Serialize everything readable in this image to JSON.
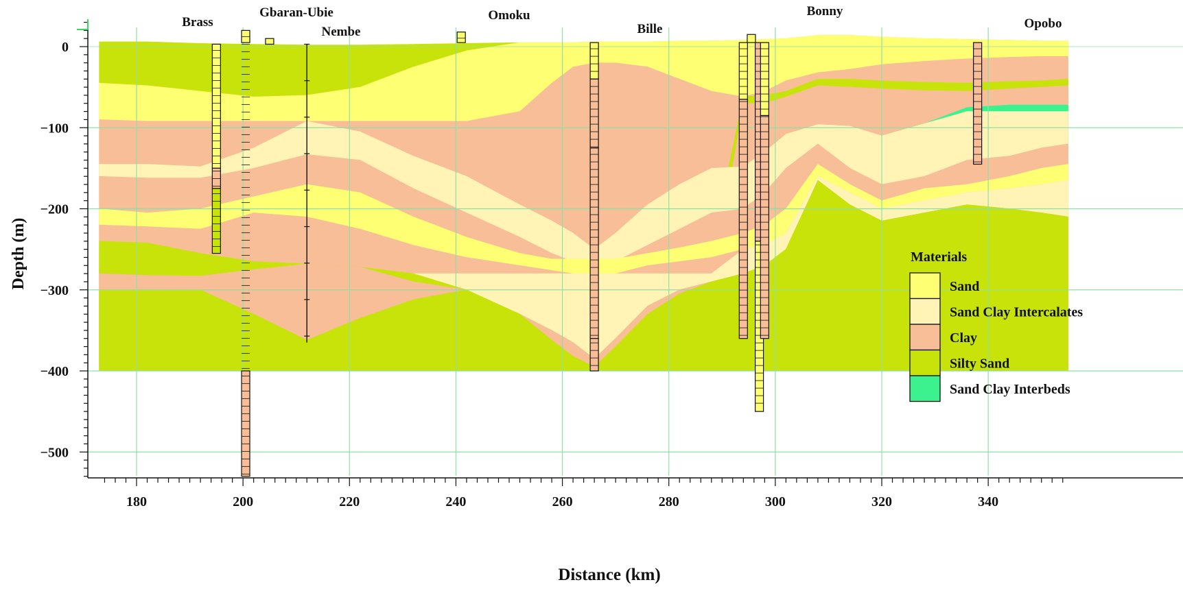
{
  "x_axis": {
    "label": "Distance (km)",
    "range": [
      173,
      355
    ],
    "ticks": [
      180,
      200,
      220,
      240,
      260,
      280,
      300,
      320,
      340
    ]
  },
  "y_axis": {
    "label": "Depth (m)",
    "range": [
      -530,
      35
    ],
    "ticks": [
      0,
      -100,
      -200,
      -300,
      -400,
      -500
    ],
    "tick_labels": [
      "0",
      "−100",
      "−200",
      "−300",
      "−400",
      "−500"
    ]
  },
  "grid": true,
  "locations": [
    {
      "name": "Brass",
      "x": 190
    },
    {
      "name": "Gbaran-Ubie",
      "x": 201
    },
    {
      "name": "Nembe",
      "x": 212
    },
    {
      "name": "Omoku",
      "x": 241
    },
    {
      "name": "Bille",
      "x": 266
    },
    {
      "name": "Bonny",
      "x": 296
    },
    {
      "name": "Opobo",
      "x": 338
    }
  ],
  "legend": {
    "title": "Materials",
    "placement": "lower-right",
    "items": [
      {
        "label": "Sand",
        "color": "#ffff73"
      },
      {
        "label": "Sand Clay Intercalates",
        "color": "#fff3b5"
      },
      {
        "label": "Clay",
        "color": "#f7be98"
      },
      {
        "label": "Silty Sand",
        "color": "#c7e30a"
      },
      {
        "label": "Sand Clay Interbeds",
        "color": "#3cf28f"
      }
    ]
  },
  "section": {
    "bottom_depth": -400,
    "profile_x": [
      173,
      182,
      192,
      202,
      212,
      222,
      232,
      242,
      252,
      258,
      262,
      266,
      270,
      276,
      282,
      288,
      294,
      298,
      302,
      308,
      314,
      320,
      328,
      336,
      344,
      350,
      355
    ],
    "layers": [
      {
        "material": "Silty Sand",
        "top": [
          6,
          6,
          4,
          3,
          2,
          2,
          3,
          4,
          5,
          5,
          5,
          6,
          6,
          6,
          7,
          7,
          8,
          9,
          10,
          14,
          14,
          12,
          10,
          9,
          8,
          7,
          7
        ]
      },
      {
        "material": "Sand",
        "top": [
          -45,
          -48,
          -55,
          -62,
          -60,
          -50,
          -25,
          -5,
          5,
          5,
          5,
          6,
          6,
          6,
          7,
          7,
          8,
          9,
          10,
          14,
          14,
          12,
          10,
          9,
          8,
          7,
          7
        ]
      },
      {
        "material": "Clay",
        "top": [
          -90,
          -92,
          -92,
          -92,
          -92,
          -92,
          -92,
          -92,
          -80,
          -45,
          -25,
          -20,
          -20,
          -25,
          -40,
          -55,
          -62,
          -55,
          -42,
          -32,
          -28,
          -22,
          -18,
          -15,
          -13,
          -12,
          -12
        ]
      },
      {
        "material": "Silty Sand",
        "top": [
          -250,
          -250,
          -250,
          -250,
          -250,
          -250,
          -250,
          -250,
          -250,
          -250,
          -250,
          -250,
          -250,
          -250,
          -250,
          -250,
          -62,
          -60,
          -55,
          -40,
          -40,
          -42,
          -44,
          -45,
          -43,
          -42,
          -40
        ]
      },
      {
        "material": "Clay",
        "top": [
          -300,
          -300,
          -300,
          -300,
          -300,
          -300,
          -300,
          -300,
          -300,
          -300,
          -300,
          -300,
          -300,
          -300,
          -300,
          -300,
          -70,
          -70,
          -62,
          -48,
          -50,
          -52,
          -54,
          -55,
          -52,
          -50,
          -48
        ]
      },
      {
        "material": "Sand Clay Interbeds",
        "top": [
          -400,
          -400,
          -400,
          -400,
          -400,
          -400,
          -400,
          -400,
          -400,
          -400,
          -400,
          -400,
          -400,
          -400,
          -400,
          -400,
          -150,
          -140,
          -125,
          -100,
          -105,
          -110,
          -95,
          -75,
          -72,
          -72,
          -72
        ]
      },
      {
        "material": "Sand Clay Intercalates",
        "top": [
          -145,
          -145,
          -148,
          -125,
          -92,
          -105,
          -135,
          -160,
          -195,
          -215,
          -230,
          -250,
          -230,
          -195,
          -170,
          -150,
          -148,
          -130,
          -108,
          -96,
          -98,
          -110,
          -95,
          -80,
          -80,
          -80,
          -80
        ]
      },
      {
        "material": "Clay",
        "top": [
          -160,
          -162,
          -162,
          -150,
          -133,
          -140,
          -175,
          -205,
          -235,
          -255,
          -265,
          -280,
          -265,
          -245,
          -225,
          -205,
          -200,
          -180,
          -150,
          -120,
          -150,
          -170,
          -160,
          -140,
          -135,
          -125,
          -120
        ]
      },
      {
        "material": "Sand",
        "top": [
          -200,
          -205,
          -200,
          -185,
          -170,
          -180,
          -210,
          -235,
          -255,
          -262,
          -262,
          -262,
          -262,
          -255,
          -248,
          -240,
          -230,
          -220,
          -200,
          -145,
          -170,
          -190,
          -175,
          -170,
          -160,
          -150,
          -145
        ]
      },
      {
        "material": "Clay",
        "top": [
          -220,
          -222,
          -225,
          -205,
          -210,
          -225,
          -245,
          -260,
          -270,
          -276,
          -280,
          -290,
          -280,
          -270,
          -265,
          -260,
          -250,
          -245,
          -230,
          -160,
          -180,
          -200,
          -190,
          -180,
          -175,
          -170,
          -165
        ]
      },
      {
        "material": "Sand Clay Intercalates",
        "top": [
          -280,
          -280,
          -280,
          -280,
          -280,
          -280,
          -280,
          -280,
          -280,
          -280,
          -280,
          -280,
          -280,
          -280,
          -280,
          -280,
          -250,
          -245,
          -230,
          -160,
          -180,
          -200,
          -190,
          -180,
          -175,
          -170,
          -165
        ]
      },
      {
        "material": "Silty Sand",
        "top": [
          -240,
          -242,
          -255,
          -265,
          -268,
          -272,
          -280,
          -300,
          -330,
          -350,
          -365,
          -385,
          -360,
          -320,
          -300,
          -290,
          -280,
          -270,
          -250,
          -165,
          -195,
          -215,
          -205,
          -195,
          -200,
          -205,
          -210
        ]
      },
      {
        "material": "Clay",
        "top": [
          -280,
          -282,
          -283,
          -275,
          -268,
          -272,
          -290,
          -300,
          -330,
          -350,
          -365,
          -385,
          -360,
          -320,
          -300,
          -290,
          -280,
          -270,
          -250,
          -165,
          -195,
          -215,
          -205,
          -195,
          -200,
          -205,
          -210
        ]
      },
      {
        "material": "Silty Sand",
        "top": [
          -300,
          -300,
          -300,
          -330,
          -362,
          -335,
          -312,
          -300,
          -330,
          -362,
          -382,
          -395,
          -370,
          -330,
          -305,
          -290,
          -280,
          -270,
          -250,
          -165,
          -195,
          -215,
          -205,
          -195,
          -200,
          -205,
          -210
        ]
      }
    ]
  },
  "boreholes": [
    {
      "x": 195,
      "top": 3,
      "bottom": -255,
      "intervals": [
        {
          "top": 3,
          "bottom": -150,
          "material": "Sand"
        },
        {
          "top": -150,
          "bottom": -175,
          "material": "Clay"
        },
        {
          "top": -175,
          "bottom": -255,
          "material": "Silty Sand"
        }
      ]
    },
    {
      "x": 200.5,
      "top": 20,
      "bottom": -530,
      "intervals": [
        {
          "top": 20,
          "bottom": 5,
          "material": "Sand"
        },
        {
          "top": -400,
          "bottom": -530,
          "material": "Clay"
        }
      ]
    },
    {
      "x": 205,
      "top": 10,
      "bottom": 3,
      "intervals": [
        {
          "top": 10,
          "bottom": 3,
          "material": "Sand"
        }
      ]
    },
    {
      "x": 241,
      "top": 18,
      "bottom": 5,
      "intervals": [
        {
          "top": 18,
          "bottom": 5,
          "material": "Sand"
        }
      ]
    },
    {
      "x": 266,
      "top": 5,
      "bottom": -400,
      "intervals": [
        {
          "top": 5,
          "bottom": -40,
          "material": "Sand"
        },
        {
          "top": -40,
          "bottom": -125,
          "material": "Clay"
        },
        {
          "top": -125,
          "bottom": -360,
          "material": "Clay"
        },
        {
          "top": -360,
          "bottom": -400,
          "material": "Clay"
        }
      ]
    },
    {
      "x": 294,
      "top": 5,
      "bottom": -360,
      "intervals": [
        {
          "top": 5,
          "bottom": -65,
          "material": "Sand"
        },
        {
          "top": -65,
          "bottom": -360,
          "material": "Clay"
        }
      ]
    },
    {
      "x": 295.5,
      "top": 15,
      "bottom": 5,
      "intervals": [
        {
          "top": 15,
          "bottom": 5,
          "material": "Sand"
        }
      ]
    },
    {
      "x": 297,
      "top": 5,
      "bottom": -450,
      "intervals": [
        {
          "top": 5,
          "bottom": -240,
          "material": "Clay"
        },
        {
          "top": -240,
          "bottom": -450,
          "material": "Sand"
        }
      ]
    },
    {
      "x": 298,
      "top": 5,
      "bottom": -360,
      "intervals": [
        {
          "top": 5,
          "bottom": -85,
          "material": "Sand"
        },
        {
          "top": -85,
          "bottom": -360,
          "material": "Clay"
        }
      ]
    },
    {
      "x": 338,
      "top": 5,
      "bottom": -145,
      "intervals": [
        {
          "top": 5,
          "bottom": -145,
          "material": "Clay"
        }
      ]
    }
  ],
  "nembe_line": {
    "x": 212,
    "top": 3,
    "bottom": -365
  }
}
